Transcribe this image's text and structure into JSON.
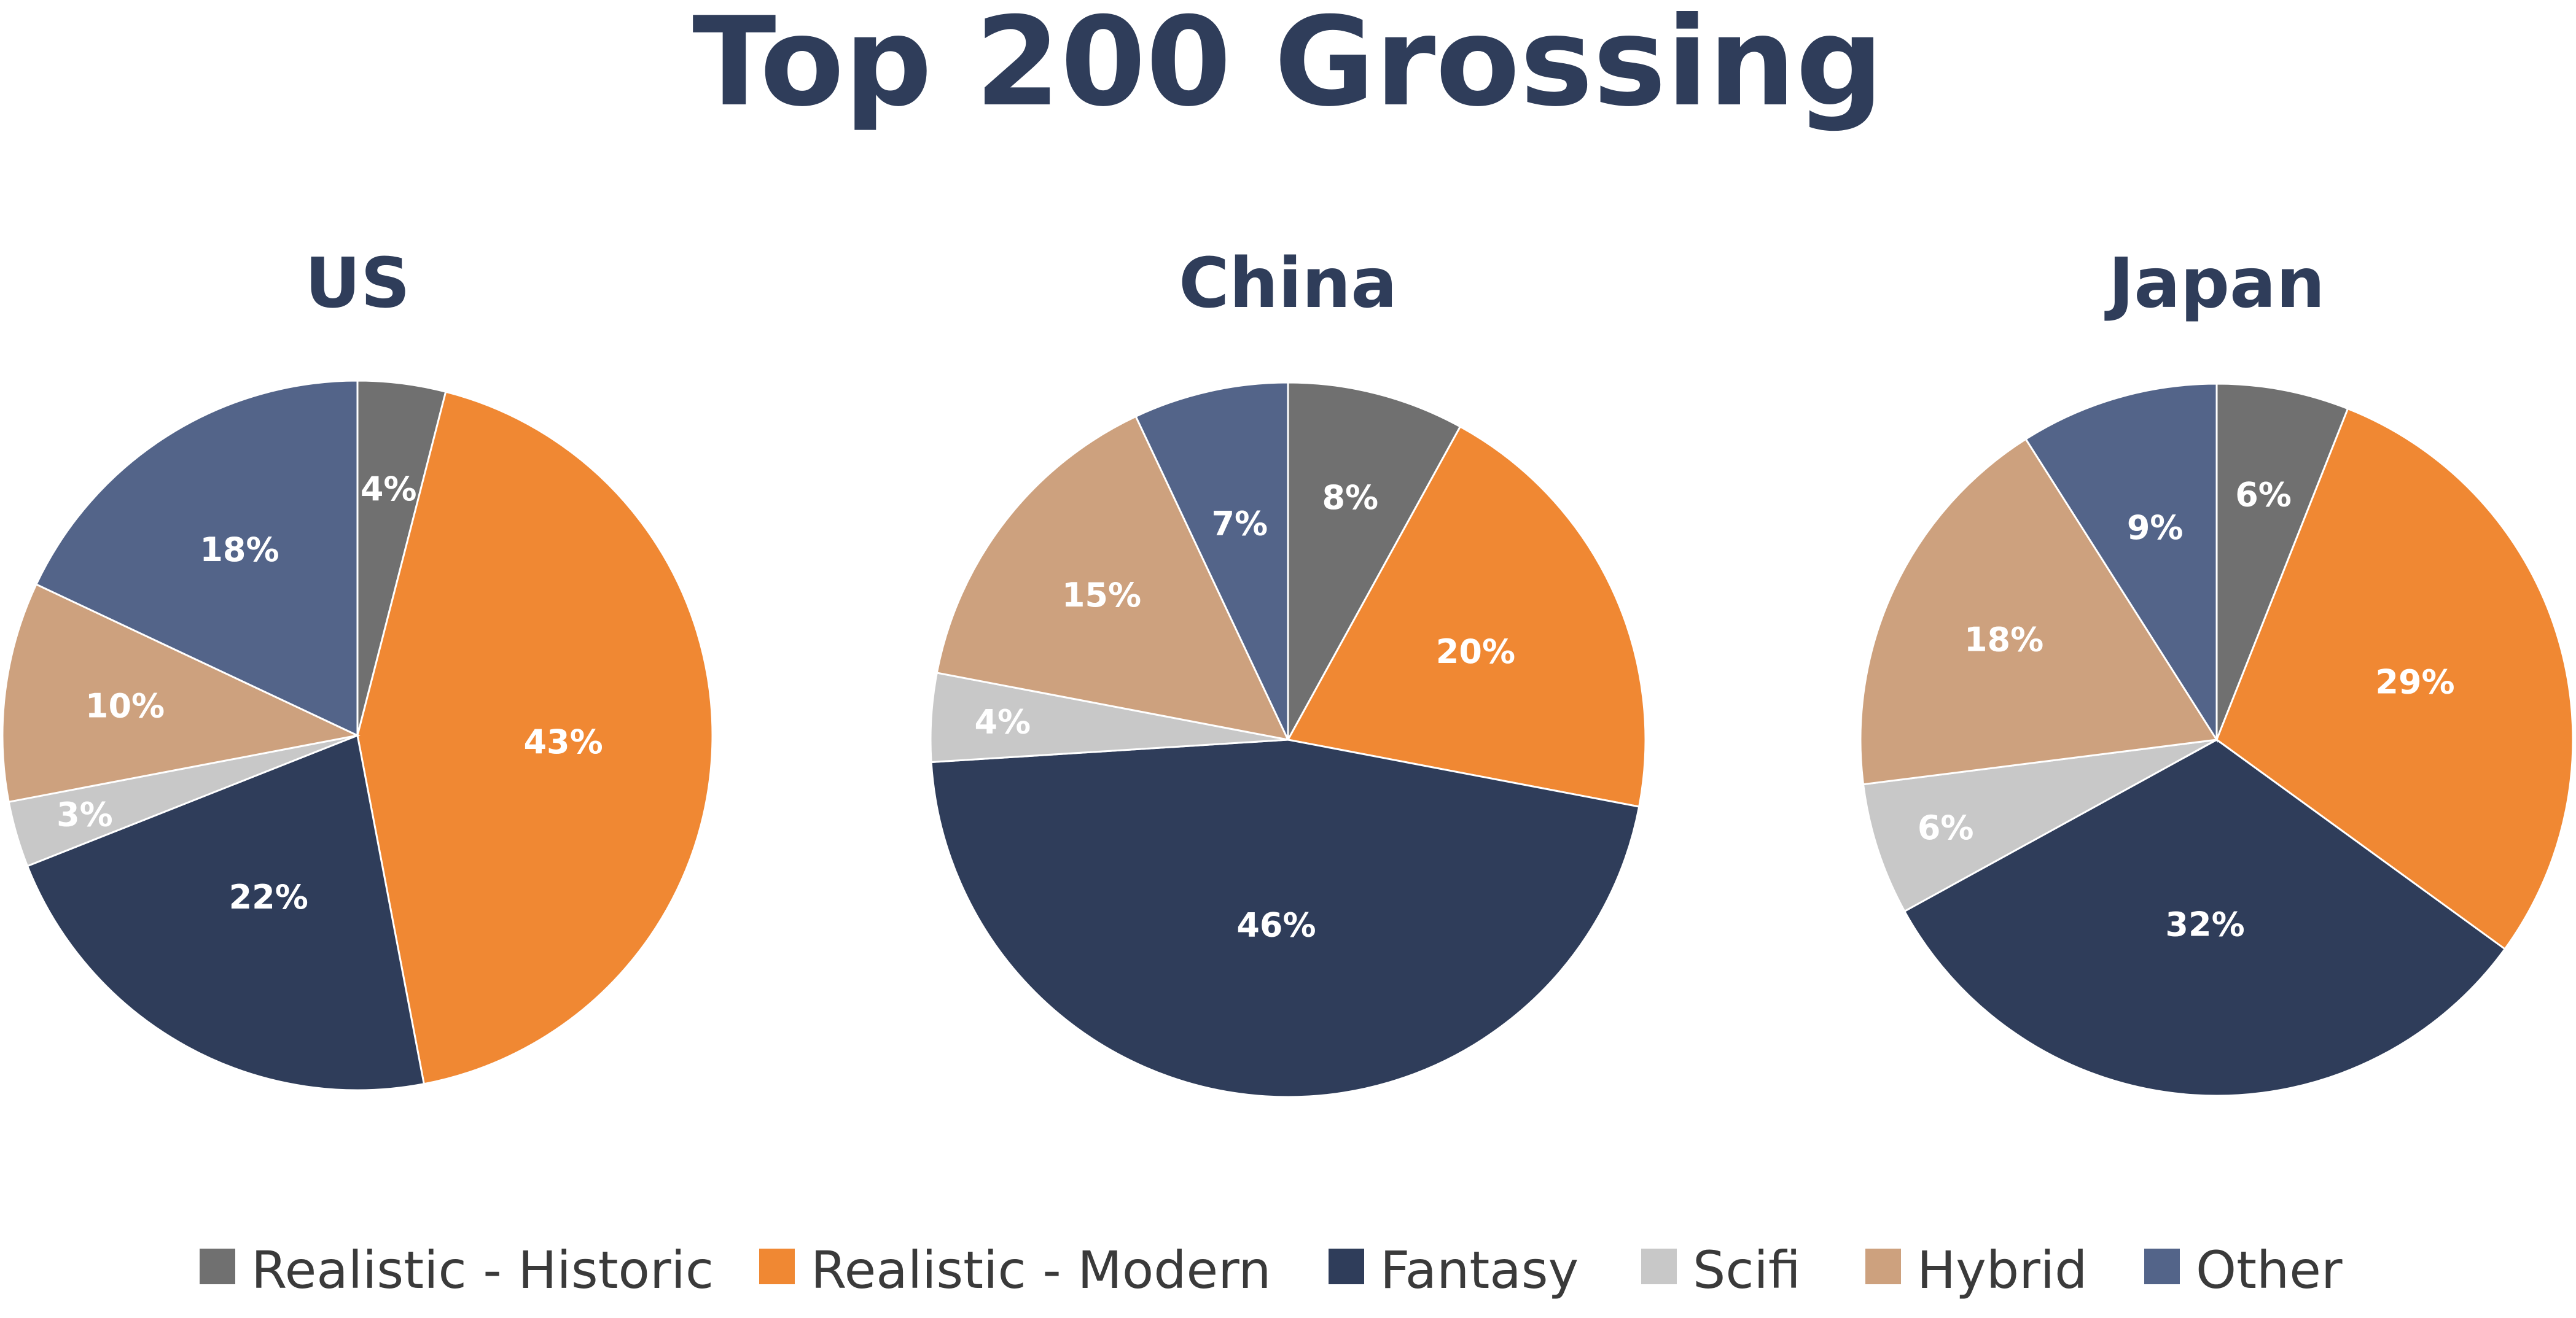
{
  "title": "Top 200 Grossing",
  "legend": [
    {
      "label": "Realistic - Historic",
      "color": "#707070"
    },
    {
      "label": "Realistic - Modern",
      "color": "#f08833"
    },
    {
      "label": "Fantasy",
      "color": "#2f3d5a"
    },
    {
      "label": "Scifi",
      "color": "#c8c8c8"
    },
    {
      "label": "Hybrid",
      "color": "#cda17e"
    },
    {
      "label": "Other",
      "color": "#536489"
    }
  ],
  "chart_data": [
    {
      "type": "pie",
      "title": "US",
      "categories": [
        "Realistic - Historic",
        "Realistic - Modern",
        "Fantasy",
        "Scifi",
        "Hybrid",
        "Other"
      ],
      "values": [
        4,
        43,
        22,
        3,
        10,
        18
      ],
      "labels": [
        "4%",
        "43%",
        "22%",
        "3%",
        "10%",
        "18%"
      ]
    },
    {
      "type": "pie",
      "title": "China",
      "categories": [
        "Realistic - Historic",
        "Realistic - Modern",
        "Fantasy",
        "Scifi",
        "Hybrid",
        "Other"
      ],
      "values": [
        8,
        20,
        46,
        4,
        15,
        7
      ],
      "labels": [
        "8%",
        "20%",
        "46%",
        "4%",
        "15%",
        "7%"
      ]
    },
    {
      "type": "pie",
      "title": "Japan",
      "categories": [
        "Realistic - Historic",
        "Realistic - Modern",
        "Fantasy",
        "Scifi",
        "Hybrid",
        "Other"
      ],
      "values": [
        6,
        29,
        32,
        6,
        18,
        9
      ],
      "labels": [
        "6%",
        "29%",
        "32%",
        "6%",
        "18%",
        "9%"
      ]
    }
  ]
}
